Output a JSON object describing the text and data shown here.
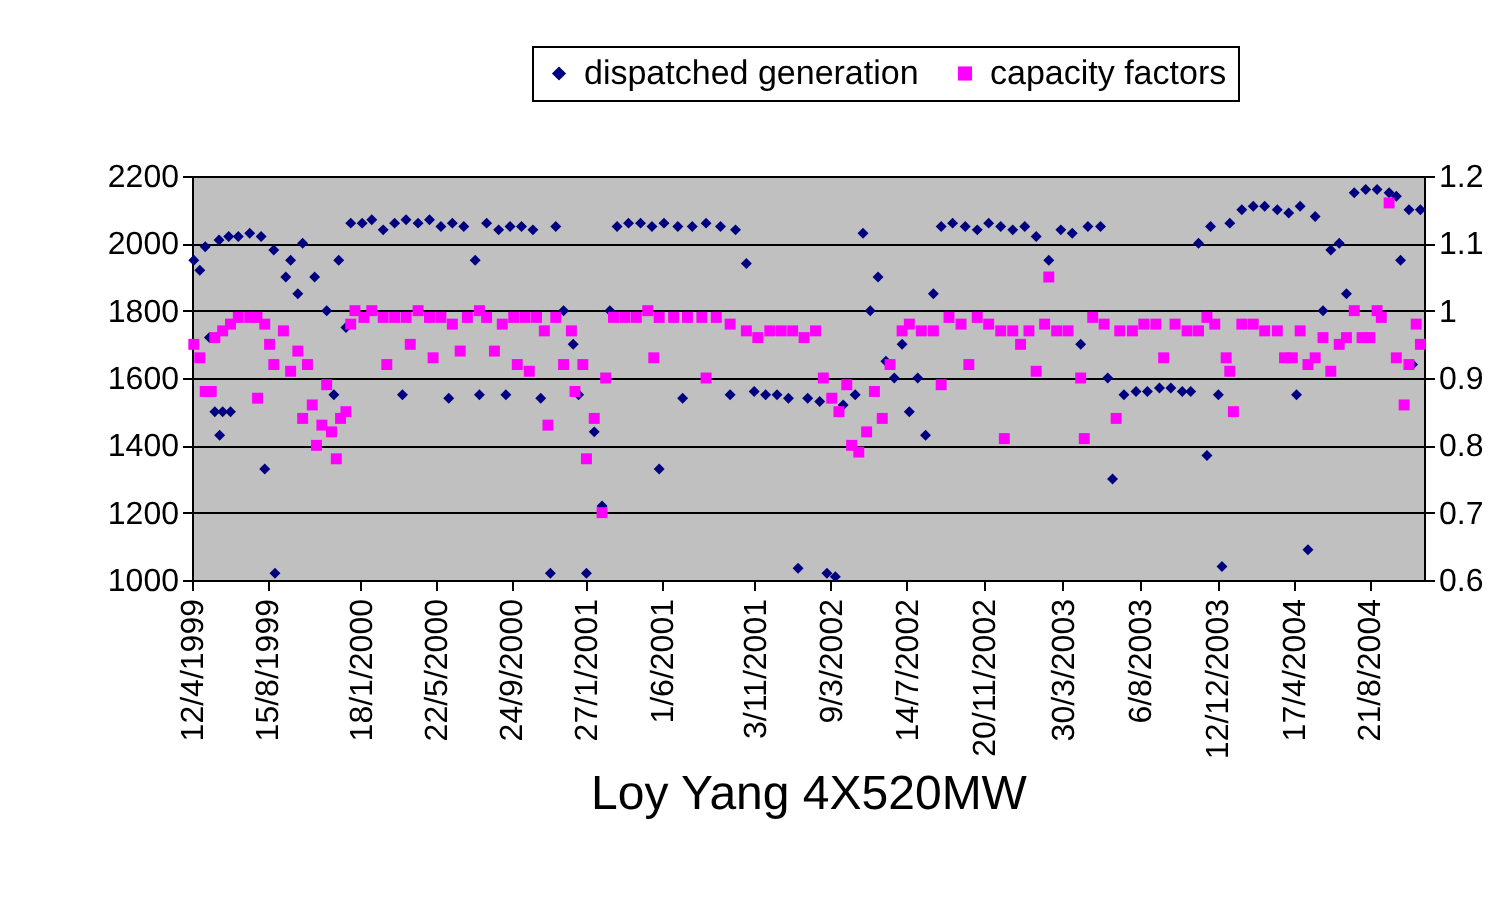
{
  "chart_data": {
    "type": "scatter",
    "xlabel": "Loy Yang 4X520MW",
    "xlim": [
      "1999-04-12",
      "2004-11-20"
    ],
    "xticks": [
      {
        "value": "1999-04-12",
        "label": "12/4/1999"
      },
      {
        "value": "1999-08-15",
        "label": "15/8/1999"
      },
      {
        "value": "2000-01-18",
        "label": "18/1/2000"
      },
      {
        "value": "2000-05-22",
        "label": "22/5/2000"
      },
      {
        "value": "2000-09-24",
        "label": "24/9/2000"
      },
      {
        "value": "2001-01-27",
        "label": "27/1/2001"
      },
      {
        "value": "2001-06-01",
        "label": "1/6/2001"
      },
      {
        "value": "2001-11-03",
        "label": "3/11/2001"
      },
      {
        "value": "2002-03-09",
        "label": "9/3/2002"
      },
      {
        "value": "2002-07-14",
        "label": "14/7/2002"
      },
      {
        "value": "2002-11-20",
        "label": "20/11/2002"
      },
      {
        "value": "2003-03-30",
        "label": "30/3/2003"
      },
      {
        "value": "2003-08-06",
        "label": "6/8/2003"
      },
      {
        "value": "2003-12-12",
        "label": "12/12/2003"
      },
      {
        "value": "2004-04-17",
        "label": "17/4/2004"
      },
      {
        "value": "2004-08-21",
        "label": "21/8/2004"
      }
    ],
    "ylim": [
      1000,
      2200
    ],
    "yticks": [
      1000,
      1200,
      1400,
      1600,
      1800,
      2000,
      2200
    ],
    "y2lim": [
      0.6,
      1.2
    ],
    "y2ticks": [
      0.6,
      0.7,
      0.8,
      0.9,
      1,
      1.1,
      1.2
    ],
    "grid": "y",
    "legend": "top",
    "series": [
      {
        "name": "dispatched generation",
        "color": "#000080",
        "marker": "diamond",
        "x": [
          "1999-04-15",
          "1999-04-25",
          "1999-05-04",
          "1999-05-11",
          "1999-05-20",
          "1999-06-02",
          "1999-06-15",
          "1999-05-27",
          "1999-06-12",
          "1999-06-28",
          "1999-07-17",
          "1999-05-28",
          "1999-08-11",
          "1999-08-28",
          "1999-08-05",
          "1999-08-26",
          "1999-09-15",
          "1999-09-23",
          "1999-10-05",
          "1999-10-13",
          "1999-11-02",
          "1999-11-22",
          "1999-12-12",
          "1999-12-04",
          "1999-12-24",
          "2000-01-01",
          "2000-01-20",
          "2000-02-05",
          "2000-02-24",
          "2000-03-14",
          "2000-04-02",
          "2000-04-22",
          "2000-03-27",
          "2000-05-11",
          "2000-05-30",
          "2000-06-18",
          "2000-06-12",
          "2000-07-07",
          "2000-07-26",
          "2000-08-02",
          "2000-08-14",
          "2000-09-03",
          "2000-09-22",
          "2000-09-15",
          "2000-10-11",
          "2000-10-30",
          "2000-11-12",
          "2000-11-28",
          "2000-12-07",
          "2000-12-20",
          "2001-01-05",
          "2001-01-14",
          "2001-01-27",
          "2001-02-09",
          "2001-02-22",
          "2001-03-07",
          "2001-03-19",
          "2001-04-07",
          "2001-04-27",
          "2001-05-16",
          "2001-05-28",
          "2001-06-05",
          "2001-06-28",
          "2001-07-22",
          "2001-07-06",
          "2001-08-14",
          "2001-09-07",
          "2001-10-02",
          "2001-09-23",
          "2001-10-20",
          "2001-11-02",
          "2001-11-21",
          "2001-12-10",
          "2001-12-29",
          "2002-01-14",
          "2002-01-30",
          "2002-02-19",
          "2002-03-03",
          "2002-03-17",
          "2002-03-30",
          "2002-04-19",
          "2002-05-02",
          "2002-05-14",
          "2002-05-27",
          "2002-06-09",
          "2002-06-23",
          "2002-07-06",
          "2002-07-18",
          "2002-08-01",
          "2002-08-14",
          "2002-08-27",
          "2002-09-09",
          "2002-09-28",
          "2002-10-19",
          "2002-11-08",
          "2002-11-27",
          "2002-12-17",
          "2003-01-06",
          "2003-01-26",
          "2003-02-14",
          "2003-03-07",
          "2003-03-27",
          "2003-04-15",
          "2003-04-29",
          "2003-05-11",
          "2003-06-01",
          "2003-06-13",
          "2003-06-21",
          "2003-07-10",
          "2003-07-30",
          "2003-08-18",
          "2003-09-07",
          "2003-09-26",
          "2003-10-15",
          "2003-10-29",
          "2003-11-11",
          "2003-11-25",
          "2003-12-01",
          "2003-12-14",
          "2003-12-20",
          "2004-01-02",
          "2004-01-22",
          "2004-02-10",
          "2004-02-29",
          "2004-03-21",
          "2004-04-09",
          "2004-04-28",
          "2004-05-11",
          "2004-04-22",
          "2004-05-23",
          "2004-06-05",
          "2004-06-18",
          "2004-07-02",
          "2004-07-14",
          "2004-07-27",
          "2004-08-15",
          "2004-09-03",
          "2004-09-23",
          "2004-10-05",
          "2004-10-12",
          "2004-10-26",
          "2004-11-01",
          "2004-11-14"
        ],
        "values": [
          1950,
          1920,
          1990,
          1720,
          1500,
          1500,
          1500,
          2010,
          2020,
          2020,
          2030,
          1430,
          1330,
          1020,
          2020,
          1980,
          1900,
          1950,
          1850,
          2000,
          1900,
          1800,
          1950,
          1550,
          1750,
          2060,
          2060,
          2070,
          2040,
          2060,
          2070,
          2060,
          1550,
          2070,
          2050,
          2060,
          1540,
          2050,
          1950,
          1550,
          2060,
          2040,
          2050,
          1550,
          2050,
          2040,
          1540,
          1020,
          2050,
          1800,
          1700,
          1550,
          1020,
          1440,
          1220,
          1800,
          2050,
          2060,
          2060,
          2050,
          1330,
          2060,
          2050,
          2050,
          1540,
          2060,
          2050,
          2040,
          1550,
          1940,
          1560,
          1550,
          1550,
          1540,
          1035,
          1540,
          1530,
          1020,
          1010,
          1520,
          1550,
          2030,
          1800,
          1900,
          1650,
          1600,
          1700,
          1500,
          1600,
          1430,
          1850,
          2050,
          2060,
          2050,
          2040,
          2060,
          2050,
          2040,
          2050,
          2020,
          1950,
          2040,
          2030,
          1700,
          2050,
          2050,
          1600,
          1300,
          1550,
          1560,
          1560,
          1570,
          1570,
          1560,
          1560,
          2000,
          1370,
          2050,
          1550,
          1040,
          2060,
          2100,
          2110,
          2110,
          2100,
          2090,
          2110,
          1090,
          1550,
          2080,
          1800,
          1980,
          2000,
          1850,
          2150,
          2160,
          2160,
          2150,
          2140,
          1950,
          2100,
          1640,
          2100
        ]
      },
      {
        "name": "capacity factors",
        "color": "#ff00ff",
        "marker": "square",
        "axis": "y2",
        "x": [
          "1999-04-15",
          "1999-04-25",
          "1999-05-04",
          "1999-05-14",
          "1999-05-20",
          "1999-06-02",
          "1999-06-15",
          "1999-06-28",
          "1999-07-17",
          "1999-07-29",
          "1999-08-11",
          "1999-07-30",
          "1999-08-19",
          "1999-08-26",
          "1999-09-11",
          "1999-09-23",
          "1999-10-05",
          "1999-10-13",
          "1999-10-21",
          "1999-10-29",
          "1999-11-05",
          "1999-11-14",
          "1999-11-22",
          "1999-11-30",
          "1999-12-08",
          "1999-12-15",
          "1999-12-24",
          "2000-01-01",
          "2000-01-08",
          "2000-01-23",
          "2000-02-05",
          "2000-02-24",
          "2000-03-14",
          "2000-04-02",
          "2000-03-01",
          "2000-04-22",
          "2000-04-09",
          "2000-05-11",
          "2000-05-30",
          "2000-05-17",
          "2000-06-18",
          "2000-07-01",
          "2000-07-13",
          "2000-08-02",
          "2000-08-14",
          "2000-08-27",
          "2000-09-09",
          "2000-09-28",
          "2000-10-04",
          "2000-10-17",
          "2000-11-05",
          "2000-10-24",
          "2000-11-18",
          "2000-11-24",
          "2000-12-07",
          "2000-12-20",
          "2001-01-02",
          "2001-01-08",
          "2001-01-21",
          "2001-01-27",
          "2001-02-09",
          "2001-02-22",
          "2001-02-28",
          "2001-03-13",
          "2001-04-01",
          "2001-04-20",
          "2001-05-09",
          "2001-05-28",
          "2001-05-19",
          "2001-06-21",
          "2001-07-14",
          "2001-08-07",
          "2001-08-31",
          "2001-08-14",
          "2001-09-23",
          "2001-10-20",
          "2001-11-08",
          "2001-11-28",
          "2001-12-17",
          "2002-01-05",
          "2002-01-24",
          "2002-02-12",
          "2002-02-25",
          "2002-03-11",
          "2002-03-23",
          "2002-04-05",
          "2002-04-13",
          "2002-04-25",
          "2002-05-08",
          "2002-05-21",
          "2002-06-03",
          "2002-06-16",
          "2002-07-06",
          "2002-07-18",
          "2002-08-07",
          "2002-08-27",
          "2002-09-09",
          "2002-09-22",
          "2002-10-12",
          "2002-10-25",
          "2002-11-08",
          "2002-11-27",
          "2002-12-17",
          "2002-12-23",
          "2003-01-06",
          "2003-01-19",
          "2003-02-02",
          "2003-02-14",
          "2003-02-28",
          "2003-03-07",
          "2003-03-20",
          "2003-04-08",
          "2003-04-29",
          "2003-05-05",
          "2003-05-19",
          "2003-06-07",
          "2003-06-27",
          "2003-07-03",
          "2003-07-24",
          "2003-08-12",
          "2003-09-01",
          "2003-09-14",
          "2003-10-03",
          "2003-10-23",
          "2003-11-11",
          "2003-11-25",
          "2003-12-08",
          "2003-12-27",
          "2004-01-02",
          "2004-01-08",
          "2004-01-22",
          "2004-02-10",
          "2004-02-29",
          "2004-03-21",
          "2004-04-02",
          "2004-04-15",
          "2004-04-28",
          "2004-05-11",
          "2004-05-23",
          "2004-06-05",
          "2004-06-18",
          "2004-07-02",
          "2004-07-14",
          "2004-07-27",
          "2004-08-09",
          "2004-08-22",
          "2004-09-03",
          "2004-09-10",
          "2004-09-23",
          "2004-10-05",
          "2004-10-18",
          "2004-10-26",
          "2004-11-07",
          "2004-11-14"
        ],
        "values": [
          0.95,
          0.93,
          0.88,
          0.88,
          0.96,
          0.97,
          0.98,
          0.99,
          0.99,
          0.99,
          0.98,
          0.87,
          0.95,
          0.92,
          0.97,
          0.91,
          0.94,
          0.84,
          0.92,
          0.86,
          0.8,
          0.83,
          0.89,
          0.82,
          0.78,
          0.84,
          0.85,
          0.98,
          1,
          0.99,
          1,
          0.99,
          0.99,
          0.99,
          0.92,
          1,
          0.95,
          0.99,
          0.99,
          0.93,
          0.98,
          0.94,
          0.99,
          1,
          0.99,
          0.94,
          0.98,
          0.99,
          0.92,
          0.99,
          0.99,
          0.91,
          0.97,
          0.83,
          0.99,
          0.92,
          0.97,
          0.88,
          0.92,
          0.78,
          0.84,
          0.7,
          0.9,
          0.99,
          0.99,
          0.99,
          1,
          0.99,
          0.93,
          0.99,
          0.99,
          0.99,
          0.99,
          0.9,
          0.98,
          0.97,
          0.96,
          0.97,
          0.97,
          0.97,
          0.96,
          0.97,
          0.9,
          0.87,
          0.85,
          0.89,
          0.8,
          0.79,
          0.82,
          0.88,
          0.84,
          0.92,
          0.97,
          0.98,
          0.97,
          0.97,
          0.89,
          0.99,
          0.98,
          0.92,
          0.99,
          0.98,
          0.97,
          0.81,
          0.97,
          0.95,
          0.97,
          0.91,
          0.98,
          1.05,
          0.97,
          0.97,
          0.9,
          0.81,
          0.99,
          0.98,
          0.84,
          0.97,
          0.97,
          0.98,
          0.98,
          0.93,
          0.98,
          0.97,
          0.97,
          0.99,
          0.98,
          0.93,
          0.91,
          0.85,
          0.98,
          0.98,
          0.97,
          0.97,
          0.93,
          0.93,
          0.97,
          0.92,
          0.93,
          0.96,
          0.91,
          0.95,
          0.96,
          1,
          0.96,
          0.96,
          1,
          0.99,
          1.16,
          0.93,
          0.86,
          0.92,
          0.98,
          0.95
        ]
      }
    ]
  }
}
